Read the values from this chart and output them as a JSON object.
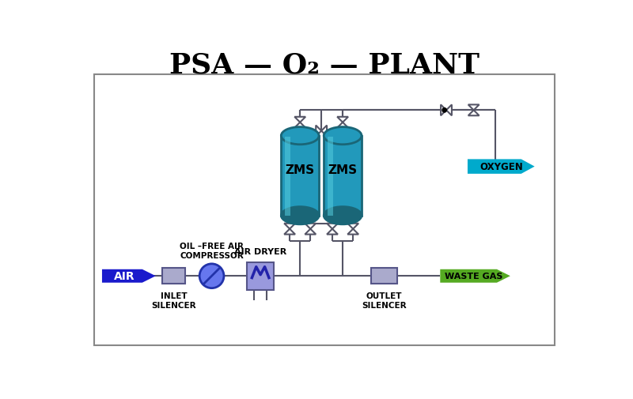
{
  "title": "PSA — O₂ — PLANT",
  "title_fontsize": 26,
  "bg_color": "#ffffff",
  "border_color": "#888888",
  "air_arrow_color": "#1a1acc",
  "air_text": "AIR",
  "oxygen_arrow_color": "#00aacc",
  "oxygen_text": "OXYGEN",
  "waste_arrow_color": "#55aa22",
  "waste_text": "WASTE GAS",
  "zms_color": "#2299bb",
  "zms_dark": "#1a6677",
  "zms_highlight": "#55ccdd",
  "zms_label": "ZMS",
  "inlet_silencer_label": "INLET\nSILENCER",
  "outlet_silencer_label": "OUTLET\nSILENCER",
  "compressor_label": "OIL –FREE AIR\nCOMPRESSOR",
  "dryer_label": "AIR DRYER",
  "pipe_color": "#555566",
  "silencer_fill": "#aaaacc",
  "silencer_edge": "#555588",
  "dryer_fill": "#9999dd",
  "dryer_edge": "#555588",
  "compressor_fill": "#6677ee",
  "compressor_edge": "#2233aa"
}
